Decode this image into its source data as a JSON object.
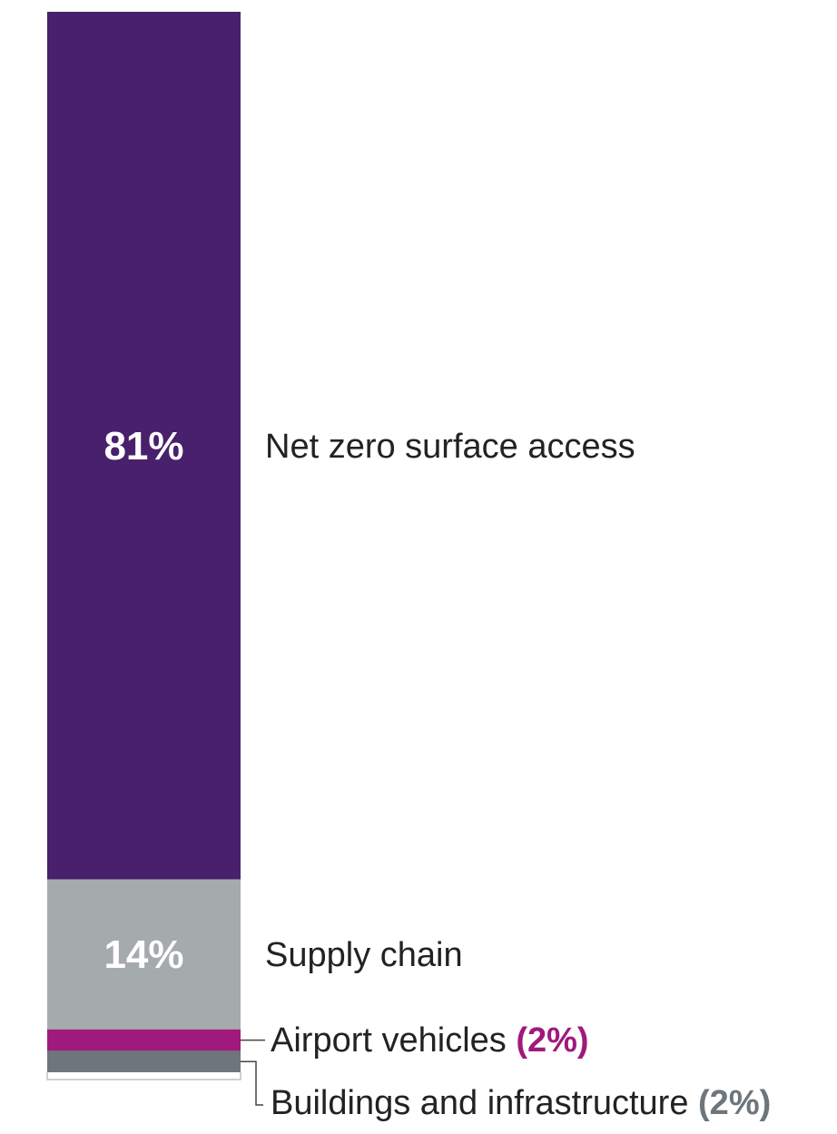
{
  "chart_data": {
    "type": "bar",
    "stacked": true,
    "orientation": "vertical",
    "categories": [
      "Net zero surface access",
      "Supply chain",
      "Airport vehicles",
      "Buildings and infrastructure"
    ],
    "values": [
      81,
      14,
      2,
      2
    ],
    "value_labels": [
      "81%",
      "14%",
      "(2%)",
      "(2%)"
    ],
    "colors": [
      "#48206c",
      "#a5aaad",
      "#a0197c",
      "#6d767c"
    ],
    "value_label_colors": [
      "#ffffff",
      "#ffffff",
      "#a0197c",
      "#6d767c"
    ],
    "unit": "%"
  }
}
